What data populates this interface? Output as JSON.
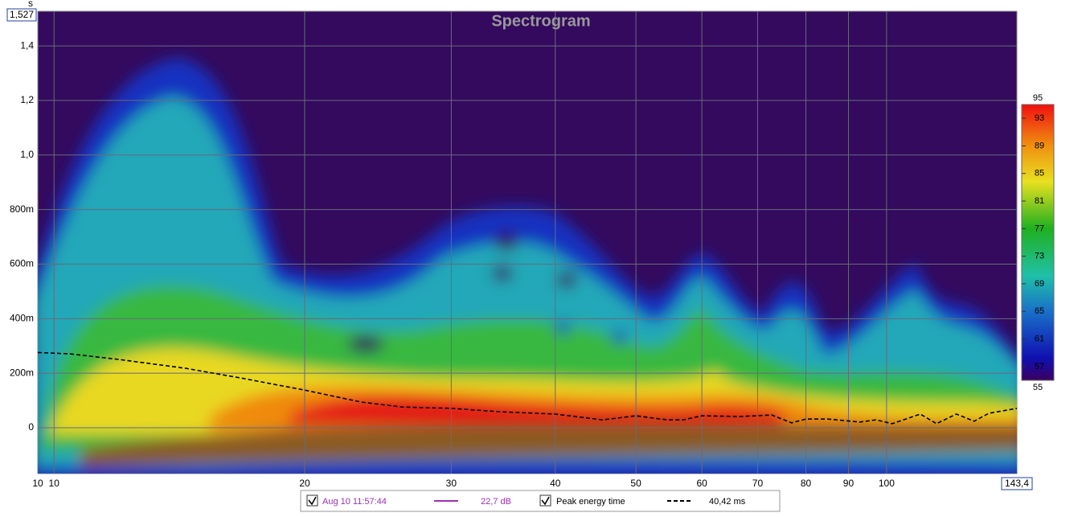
{
  "chart_data": {
    "type": "spectrogram",
    "title": "Spectrogram",
    "y_label": "s",
    "x_scale": "log",
    "grid": true,
    "xlim": [
      {
        "value": 9.56,
        "label": "10"
      },
      {
        "value": 143.4,
        "label": "143,4"
      }
    ],
    "ylim": [
      -0.168,
      {
        "value": 1.527,
        "label": "1,527"
      }
    ],
    "xticks": [
      10,
      20,
      30,
      40,
      50,
      60,
      70,
      80,
      90,
      100
    ],
    "yticks": [
      0,
      {
        "value": 0.2,
        "label": "200m"
      },
      {
        "value": 0.4,
        "label": "400m"
      },
      {
        "value": 0.6,
        "label": "600m"
      },
      {
        "value": 0.8,
        "label": "800m"
      },
      {
        "value": 1.0,
        "label": "1,0"
      },
      {
        "value": 1.2,
        "label": "1,2"
      },
      {
        "value": 1.4,
        "label": "1,4"
      }
    ],
    "series": [
      {
        "name": "Peak energy time",
        "color": "#000000",
        "readout": "40,42 ms",
        "x": [
          9.56,
          10.45,
          12.0,
          14.4,
          16.8,
          20,
          23.4,
          26.2,
          30,
          34.2,
          40,
          45.6,
          50,
          54.5,
          57.0,
          60,
          66.6,
          72.8,
          76.9,
          80,
          85.1,
          92.9,
          97.1,
          101.6,
          109.8,
          114.8,
          121.3,
          127.4,
          132.7,
          143.4
        ],
        "values": [
          0.276,
          0.271,
          0.25,
          0.218,
          0.182,
          0.138,
          0.094,
          0.076,
          0.071,
          0.059,
          0.05,
          0.029,
          0.044,
          0.029,
          0.029,
          0.044,
          0.041,
          0.047,
          0.018,
          0.032,
          0.032,
          0.021,
          0.029,
          0.015,
          0.05,
          0.015,
          0.05,
          0.024,
          0.053,
          0.071
        ]
      }
    ],
    "measurement": {
      "name": "Aug 10 11:57:44",
      "color": "#9b30b0",
      "readout": "22,7 dB"
    },
    "colorbar": {
      "lim": [
        55,
        95
      ],
      "ticks": [
        57,
        61,
        65,
        69,
        73,
        77,
        81,
        85,
        89,
        93
      ]
    }
  }
}
